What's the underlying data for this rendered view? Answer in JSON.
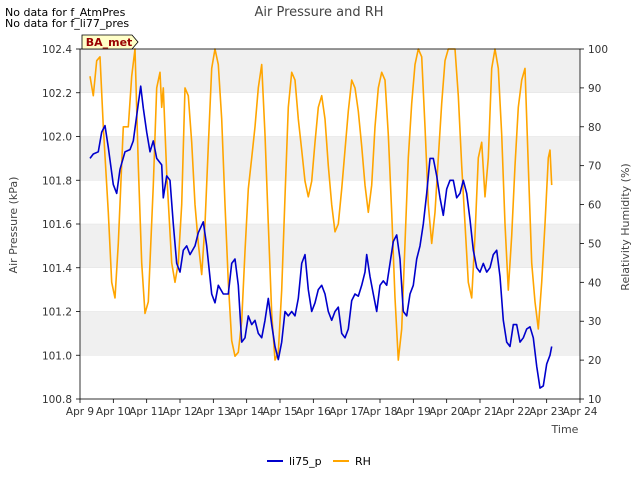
{
  "notes": [
    "No data for f_AtmPres",
    "No data for f_li77_pres"
  ],
  "badge": "BA_met",
  "chart_data": {
    "type": "line",
    "title": "Air Pressure and RH",
    "xlabel": "Time",
    "ylabel_left": "Air Pressure (kPa)",
    "ylabel_right": "Relativity Humidity (%)",
    "x_ticks": [
      "Apr 9",
      "Apr 10",
      "Apr 11",
      "Apr 12",
      "Apr 13",
      "Apr 14",
      "Apr 15",
      "Apr 16",
      "Apr 17",
      "Apr 18",
      "Apr 19",
      "Apr 20",
      "Apr 21",
      "Apr 22",
      "Apr 23",
      "Apr 24"
    ],
    "xlim": [
      9,
      24
    ],
    "y_left_ticks": [
      "100.8",
      "101.0",
      "101.2",
      "101.4",
      "101.6",
      "101.8",
      "102.0",
      "102.2",
      "102.4"
    ],
    "ylim_left": [
      100.8,
      102.4
    ],
    "y_right_ticks": [
      "10",
      "20",
      "30",
      "40",
      "50",
      "60",
      "70",
      "80",
      "90",
      "100"
    ],
    "ylim_right": [
      10,
      100
    ],
    "grid": "horizontal bands",
    "legend_position": "bottom-center",
    "series": [
      {
        "name": "li75_p",
        "axis": "left",
        "color": "#0000cc",
        "points": [
          [
            9.3,
            101.9
          ],
          [
            9.4,
            101.92
          ],
          [
            9.55,
            101.93
          ],
          [
            9.65,
            102.02
          ],
          [
            9.75,
            102.05
          ],
          [
            9.85,
            101.95
          ],
          [
            10.0,
            101.78
          ],
          [
            10.1,
            101.74
          ],
          [
            10.2,
            101.85
          ],
          [
            10.35,
            101.93
          ],
          [
            10.5,
            101.94
          ],
          [
            10.6,
            101.98
          ],
          [
            10.75,
            102.15
          ],
          [
            10.82,
            102.23
          ],
          [
            10.9,
            102.13
          ],
          [
            11.0,
            102.02
          ],
          [
            11.1,
            101.93
          ],
          [
            11.2,
            101.98
          ],
          [
            11.3,
            101.9
          ],
          [
            11.45,
            101.87
          ],
          [
            11.5,
            101.72
          ],
          [
            11.6,
            101.82
          ],
          [
            11.7,
            101.8
          ],
          [
            11.8,
            101.6
          ],
          [
            11.9,
            101.42
          ],
          [
            12.0,
            101.38
          ],
          [
            12.1,
            101.48
          ],
          [
            12.2,
            101.5
          ],
          [
            12.3,
            101.46
          ],
          [
            12.45,
            101.5
          ],
          [
            12.55,
            101.56
          ],
          [
            12.7,
            101.61
          ],
          [
            12.8,
            101.5
          ],
          [
            12.95,
            101.28
          ],
          [
            13.05,
            101.24
          ],
          [
            13.15,
            101.32
          ],
          [
            13.3,
            101.28
          ],
          [
            13.45,
            101.28
          ],
          [
            13.55,
            101.42
          ],
          [
            13.65,
            101.44
          ],
          [
            13.75,
            101.32
          ],
          [
            13.85,
            101.06
          ],
          [
            13.95,
            101.08
          ],
          [
            14.05,
            101.18
          ],
          [
            14.15,
            101.14
          ],
          [
            14.25,
            101.16
          ],
          [
            14.35,
            101.1
          ],
          [
            14.45,
            101.08
          ],
          [
            14.55,
            101.16
          ],
          [
            14.65,
            101.26
          ],
          [
            14.75,
            101.14
          ],
          [
            14.85,
            101.04
          ],
          [
            14.95,
            100.98
          ],
          [
            15.05,
            101.06
          ],
          [
            15.15,
            101.2
          ],
          [
            15.25,
            101.18
          ],
          [
            15.35,
            101.2
          ],
          [
            15.45,
            101.18
          ],
          [
            15.55,
            101.26
          ],
          [
            15.65,
            101.42
          ],
          [
            15.75,
            101.46
          ],
          [
            15.85,
            101.3
          ],
          [
            15.95,
            101.2
          ],
          [
            16.05,
            101.24
          ],
          [
            16.15,
            101.3
          ],
          [
            16.25,
            101.32
          ],
          [
            16.35,
            101.28
          ],
          [
            16.45,
            101.2
          ],
          [
            16.55,
            101.16
          ],
          [
            16.65,
            101.2
          ],
          [
            16.75,
            101.22
          ],
          [
            16.85,
            101.1
          ],
          [
            16.95,
            101.08
          ],
          [
            17.05,
            101.12
          ],
          [
            17.15,
            101.25
          ],
          [
            17.25,
            101.28
          ],
          [
            17.35,
            101.27
          ],
          [
            17.45,
            101.32
          ],
          [
            17.55,
            101.38
          ],
          [
            17.6,
            101.46
          ],
          [
            17.7,
            101.36
          ],
          [
            17.8,
            101.28
          ],
          [
            17.9,
            101.2
          ],
          [
            18.0,
            101.32
          ],
          [
            18.1,
            101.34
          ],
          [
            18.2,
            101.32
          ],
          [
            18.3,
            101.42
          ],
          [
            18.4,
            101.52
          ],
          [
            18.5,
            101.55
          ],
          [
            18.6,
            101.44
          ],
          [
            18.7,
            101.2
          ],
          [
            18.8,
            101.18
          ],
          [
            18.9,
            101.28
          ],
          [
            19.0,
            101.32
          ],
          [
            19.1,
            101.44
          ],
          [
            19.2,
            101.5
          ],
          [
            19.3,
            101.6
          ],
          [
            19.4,
            101.74
          ],
          [
            19.5,
            101.9
          ],
          [
            19.6,
            101.9
          ],
          [
            19.7,
            101.82
          ],
          [
            19.8,
            101.72
          ],
          [
            19.9,
            101.64
          ],
          [
            20.0,
            101.76
          ],
          [
            20.1,
            101.8
          ],
          [
            20.2,
            101.8
          ],
          [
            20.3,
            101.72
          ],
          [
            20.4,
            101.74
          ],
          [
            20.5,
            101.8
          ],
          [
            20.6,
            101.74
          ],
          [
            20.7,
            101.62
          ],
          [
            20.8,
            101.48
          ],
          [
            20.9,
            101.4
          ],
          [
            21.0,
            101.38
          ],
          [
            21.1,
            101.42
          ],
          [
            21.2,
            101.38
          ],
          [
            21.3,
            101.4
          ],
          [
            21.4,
            101.46
          ],
          [
            21.5,
            101.48
          ],
          [
            21.6,
            101.36
          ],
          [
            21.7,
            101.16
          ],
          [
            21.8,
            101.06
          ],
          [
            21.9,
            101.04
          ],
          [
            22.0,
            101.14
          ],
          [
            22.1,
            101.14
          ],
          [
            22.2,
            101.06
          ],
          [
            22.3,
            101.08
          ],
          [
            22.4,
            101.12
          ],
          [
            22.5,
            101.13
          ],
          [
            22.6,
            101.08
          ],
          [
            22.7,
            100.95
          ],
          [
            22.8,
            100.85
          ],
          [
            22.9,
            100.86
          ],
          [
            23.0,
            100.96
          ],
          [
            23.1,
            101.0
          ],
          [
            23.15,
            101.04
          ]
        ]
      },
      {
        "name": "RH",
        "axis": "right",
        "color": "#ffa500",
        "points": [
          [
            9.3,
            93
          ],
          [
            9.4,
            88
          ],
          [
            9.5,
            97
          ],
          [
            9.6,
            98
          ],
          [
            9.7,
            80
          ],
          [
            9.85,
            58
          ],
          [
            9.95,
            40
          ],
          [
            10.05,
            36
          ],
          [
            10.15,
            50
          ],
          [
            10.3,
            80
          ],
          [
            10.45,
            80
          ],
          [
            10.55,
            93
          ],
          [
            10.65,
            100
          ],
          [
            10.75,
            70
          ],
          [
            10.85,
            45
          ],
          [
            10.95,
            32
          ],
          [
            11.05,
            35
          ],
          [
            11.2,
            65
          ],
          [
            11.3,
            90
          ],
          [
            11.4,
            94
          ],
          [
            11.45,
            85
          ],
          [
            11.5,
            90
          ],
          [
            11.6,
            68
          ],
          [
            11.75,
            45
          ],
          [
            11.85,
            40
          ],
          [
            11.95,
            45
          ],
          [
            12.05,
            60
          ],
          [
            12.15,
            90
          ],
          [
            12.25,
            88
          ],
          [
            12.35,
            76
          ],
          [
            12.45,
            60
          ],
          [
            12.55,
            50
          ],
          [
            12.65,
            42
          ],
          [
            12.75,
            55
          ],
          [
            12.85,
            75
          ],
          [
            12.95,
            95
          ],
          [
            13.05,
            100
          ],
          [
            13.15,
            96
          ],
          [
            13.25,
            82
          ],
          [
            13.35,
            60
          ],
          [
            13.45,
            40
          ],
          [
            13.55,
            25
          ],
          [
            13.65,
            21
          ],
          [
            13.75,
            22
          ],
          [
            13.85,
            30
          ],
          [
            13.95,
            48
          ],
          [
            14.05,
            64
          ],
          [
            14.15,
            72
          ],
          [
            14.25,
            80
          ],
          [
            14.35,
            90
          ],
          [
            14.45,
            96
          ],
          [
            14.55,
            78
          ],
          [
            14.65,
            55
          ],
          [
            14.75,
            32
          ],
          [
            14.85,
            20
          ],
          [
            14.95,
            22
          ],
          [
            15.05,
            38
          ],
          [
            15.15,
            62
          ],
          [
            15.25,
            85
          ],
          [
            15.35,
            94
          ],
          [
            15.45,
            92
          ],
          [
            15.55,
            82
          ],
          [
            15.65,
            74
          ],
          [
            15.75,
            66
          ],
          [
            15.85,
            62
          ],
          [
            15.95,
            66
          ],
          [
            16.05,
            76
          ],
          [
            16.15,
            85
          ],
          [
            16.25,
            88
          ],
          [
            16.35,
            82
          ],
          [
            16.45,
            70
          ],
          [
            16.55,
            60
          ],
          [
            16.65,
            53
          ],
          [
            16.75,
            55
          ],
          [
            16.85,
            64
          ],
          [
            16.95,
            74
          ],
          [
            17.05,
            84
          ],
          [
            17.15,
            92
          ],
          [
            17.25,
            90
          ],
          [
            17.35,
            84
          ],
          [
            17.45,
            75
          ],
          [
            17.55,
            65
          ],
          [
            17.65,
            58
          ],
          [
            17.75,
            65
          ],
          [
            17.85,
            80
          ],
          [
            17.95,
            90
          ],
          [
            18.05,
            94
          ],
          [
            18.15,
            92
          ],
          [
            18.25,
            78
          ],
          [
            18.35,
            58
          ],
          [
            18.45,
            36
          ],
          [
            18.55,
            20
          ],
          [
            18.65,
            28
          ],
          [
            18.75,
            50
          ],
          [
            18.85,
            72
          ],
          [
            18.95,
            86
          ],
          [
            19.05,
            96
          ],
          [
            19.15,
            100
          ],
          [
            19.25,
            98
          ],
          [
            19.35,
            80
          ],
          [
            19.45,
            60
          ],
          [
            19.55,
            50
          ],
          [
            19.65,
            58
          ],
          [
            19.75,
            72
          ],
          [
            19.85,
            86
          ],
          [
            19.95,
            97
          ],
          [
            20.05,
            100
          ],
          [
            20.15,
            100
          ],
          [
            20.25,
            100
          ],
          [
            20.35,
            88
          ],
          [
            20.45,
            70
          ],
          [
            20.55,
            55
          ],
          [
            20.65,
            40
          ],
          [
            20.75,
            36
          ],
          [
            20.85,
            52
          ],
          [
            20.95,
            72
          ],
          [
            21.05,
            76
          ],
          [
            21.15,
            62
          ],
          [
            21.25,
            72
          ],
          [
            21.35,
            95
          ],
          [
            21.45,
            100
          ],
          [
            21.55,
            95
          ],
          [
            21.65,
            78
          ],
          [
            21.75,
            55
          ],
          [
            21.85,
            38
          ],
          [
            21.95,
            52
          ],
          [
            22.05,
            70
          ],
          [
            22.15,
            85
          ],
          [
            22.25,
            92
          ],
          [
            22.35,
            95
          ],
          [
            22.45,
            70
          ],
          [
            22.55,
            45
          ],
          [
            22.65,
            35
          ],
          [
            22.75,
            28
          ],
          [
            22.85,
            40
          ],
          [
            22.95,
            55
          ],
          [
            23.05,
            72
          ],
          [
            23.1,
            74
          ],
          [
            23.15,
            65
          ]
        ]
      }
    ]
  },
  "colors": {
    "band": "#f0f0f0",
    "axis": "#000000"
  }
}
